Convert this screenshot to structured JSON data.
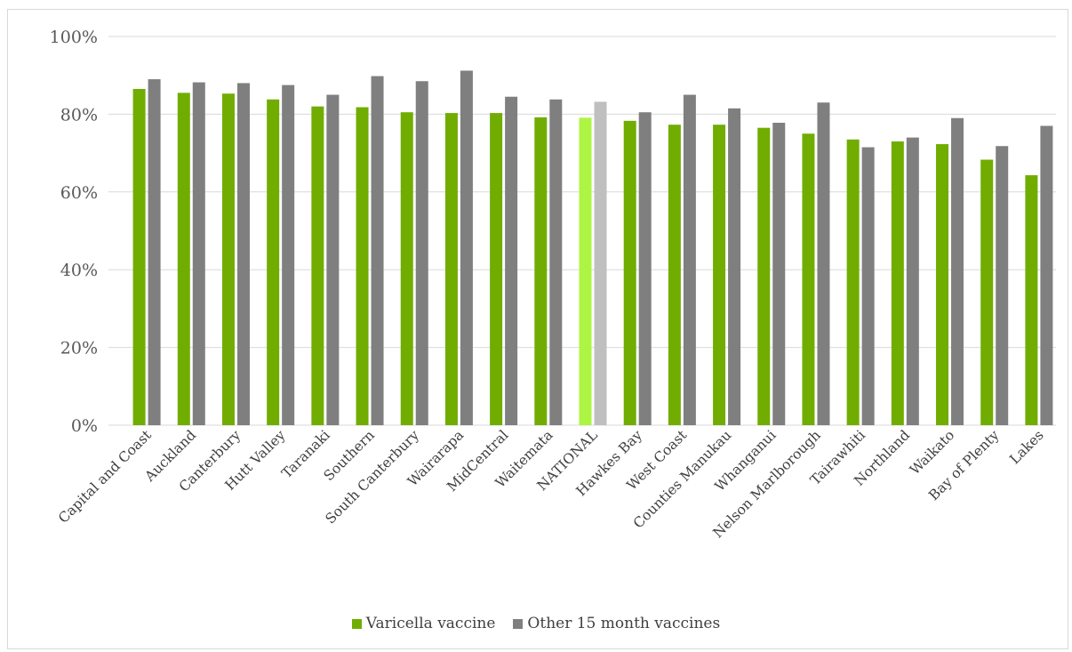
{
  "chart_data": {
    "type": "bar",
    "title": "",
    "xlabel": "",
    "ylabel": "",
    "ylim": [
      0,
      100
    ],
    "yticks": [
      "0%",
      "20%",
      "40%",
      "60%",
      "80%",
      "100%"
    ],
    "ytick_values": [
      0,
      20,
      40,
      60,
      80,
      100
    ],
    "grid": true,
    "legend_position": "bottom",
    "categories": [
      "Capital and Coast",
      "Auckland",
      "Canterbury",
      "Hutt Valley",
      "Taranaki",
      "Southern",
      "South Canterbury",
      "Wairarapa",
      "MidCentral",
      "Waitemata",
      "NATIONAL",
      "Hawkes Bay",
      "West Coast",
      "Counties Manukau",
      "Whanganui",
      "Nelson Marlborough",
      "Tairawhiti",
      "Northland",
      "Waikato",
      "Bay of Plenty",
      "Lakes"
    ],
    "series": [
      {
        "name": "Varicella vaccine",
        "color": "#70ad00",
        "highlight_color": "#adf542",
        "values": [
          86.5,
          85.5,
          85.3,
          83.8,
          82.0,
          81.8,
          80.5,
          80.3,
          80.3,
          79.2,
          79.1,
          78.3,
          77.3,
          77.3,
          76.5,
          75.0,
          73.5,
          73.0,
          72.3,
          68.3,
          64.3
        ]
      },
      {
        "name": "Other 15 month vaccines",
        "color": "#7f7f7f",
        "highlight_color": "#bfbfbf",
        "values": [
          89.0,
          88.2,
          88.0,
          87.5,
          85.0,
          89.8,
          88.5,
          91.2,
          84.5,
          83.8,
          83.2,
          80.5,
          85.0,
          81.5,
          77.8,
          83.0,
          71.5,
          74.0,
          79.0,
          71.8,
          77.0
        ]
      }
    ],
    "highlight_category": "NATIONAL"
  }
}
